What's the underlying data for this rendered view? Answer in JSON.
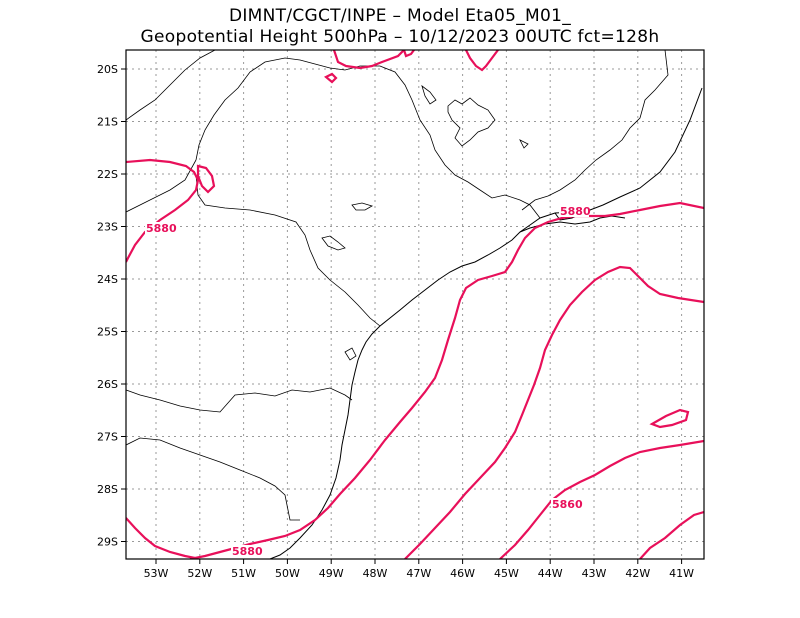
{
  "header": {
    "line1": "DIMNT/CGCT/INPE –  Model Eta05_M01_",
    "line2": "Geopotential Height 500hPa –  10/12/2023 00UTC fct=128h"
  },
  "axes": {
    "lat_labels": [
      "20S",
      "21S",
      "22S",
      "23S",
      "24S",
      "25S",
      "26S",
      "27S",
      "28S",
      "29S"
    ],
    "lon_labels": [
      "53W",
      "52W",
      "51W",
      "50W",
      "49W",
      "48W",
      "47W",
      "46W",
      "45W",
      "44W",
      "43W",
      "42W",
      "41W"
    ]
  },
  "contours": {
    "color": "#e8105a",
    "labels": [
      "5880",
      "5880",
      "5880",
      "5860"
    ]
  },
  "colors": {
    "contour": "#e8105a",
    "coast": "#000000",
    "grid": "#999999"
  }
}
